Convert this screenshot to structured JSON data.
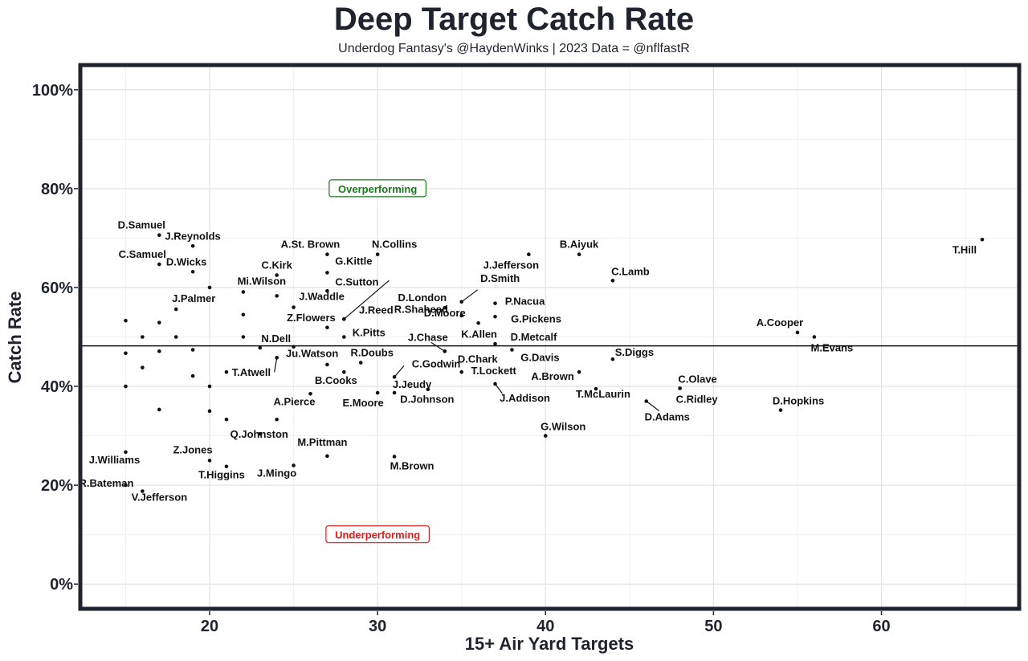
{
  "chart_data": {
    "type": "scatter",
    "title": "Deep Target Catch Rate",
    "subtitle": "Underdog Fantasy's @HaydenWinks | 2023 Data = @nflfastR",
    "xlabel": "15+ Air Yard Targets",
    "ylabel": "Catch Rate",
    "xlim": [
      12.3,
      68.2
    ],
    "ylim": [
      -5,
      105
    ],
    "x_ticks": [
      20,
      30,
      40,
      50,
      60
    ],
    "y_ticks": [
      0,
      20,
      40,
      60,
      80,
      100
    ],
    "y_tick_labels": [
      "0%",
      "20%",
      "40%",
      "60%",
      "80%",
      "100%"
    ],
    "reference_line_y": 48.2,
    "annotations": [
      {
        "text": "Overperforming",
        "x": 30,
        "y": 80,
        "color": "#1a7a1a"
      },
      {
        "text": "Underperforming",
        "x": 30,
        "y": 10,
        "color": "#e01b1b"
      }
    ],
    "points": [
      {
        "name": "T.Hill",
        "x": 66,
        "y": 69.7
      },
      {
        "name": "B.Aiyuk",
        "x": 42,
        "y": 66.7
      },
      {
        "name": "J.Jefferson",
        "x": 39,
        "y": 66.7
      },
      {
        "name": "C.Lamb",
        "x": 44,
        "y": 61.4
      },
      {
        "name": "D.Samuel",
        "x": 17,
        "y": 70.6
      },
      {
        "name": "C.Samuel",
        "x": 17,
        "y": 64.7
      },
      {
        "name": "J.Reynolds",
        "x": 19,
        "y": 68.4
      },
      {
        "name": "D.Wicks",
        "x": 19,
        "y": 63.2
      },
      {
        "name": "J.Palmer",
        "x": 18,
        "y": 55.6
      },
      {
        "name": "A.St. Brown",
        "x": 27,
        "y": 66.7
      },
      {
        "name": "N.Collins",
        "x": 30,
        "y": 66.7
      },
      {
        "name": "C.Kirk",
        "x": 24,
        "y": 62.5
      },
      {
        "name": "G.Kittle",
        "x": 27,
        "y": 63.0
      },
      {
        "name": "Mi.Wilson",
        "x": 22,
        "y": 59.1
      },
      {
        "name": "C.Sutton",
        "x": 27,
        "y": 59.3
      },
      {
        "name": "R.Shaheed",
        "x": 28,
        "y": 53.6
      },
      {
        "name": "J.Waddle",
        "x": 25,
        "y": 56.0
      },
      {
        "name": "Z.Flowers",
        "x": 27,
        "y": 51.9
      },
      {
        "name": "J.Reed",
        "x": 28,
        "y": 53.6
      },
      {
        "name": "K.Pitts",
        "x": 28,
        "y": 50.0
      },
      {
        "name": "N.Dell",
        "x": 23,
        "y": 47.8
      },
      {
        "name": "Ju.Watson",
        "x": 24,
        "y": 45.8
      },
      {
        "name": "R.Doubs",
        "x": 29,
        "y": 44.8
      },
      {
        "name": "T.Atwell",
        "x": 21,
        "y": 42.9
      },
      {
        "name": "B.Cooks",
        "x": 28,
        "y": 42.9
      },
      {
        "name": "D.Smith",
        "x": 35,
        "y": 57.1
      },
      {
        "name": "D.London",
        "x": 34,
        "y": 55.9
      },
      {
        "name": "D.Moore",
        "x": 35,
        "y": 54.3
      },
      {
        "name": "P.Nacua",
        "x": 37,
        "y": 56.8
      },
      {
        "name": "G.Pickens",
        "x": 37,
        "y": 54.1
      },
      {
        "name": "K.Allen",
        "x": 36,
        "y": 52.8
      },
      {
        "name": "J.Chase",
        "x": 34,
        "y": 47.1
      },
      {
        "name": "D.Metcalf",
        "x": 37,
        "y": 48.6
      },
      {
        "name": "D.Chark",
        "x": 34,
        "y": 47.1
      },
      {
        "name": "G.Davis",
        "x": 38,
        "y": 47.4
      },
      {
        "name": "C.Godwin",
        "x": 31,
        "y": 41.9
      },
      {
        "name": "T.Lockett",
        "x": 35,
        "y": 42.9
      },
      {
        "name": "J.Jeudy",
        "x": 31,
        "y": 38.7
      },
      {
        "name": "E.Moore",
        "x": 30,
        "y": 38.7
      },
      {
        "name": "D.Johnson",
        "x": 33,
        "y": 39.4
      },
      {
        "name": "J.Addison",
        "x": 37,
        "y": 40.5
      },
      {
        "name": "A.Brown",
        "x": 42,
        "y": 42.9
      },
      {
        "name": "T.McLaurin",
        "x": 43,
        "y": 39.5
      },
      {
        "name": "S.Diggs",
        "x": 44,
        "y": 45.5
      },
      {
        "name": "A.Cooper",
        "x": 55,
        "y": 50.9
      },
      {
        "name": "M.Evans",
        "x": 56,
        "y": 50.0
      },
      {
        "name": "C.Olave",
        "x": 48,
        "y": 39.6
      },
      {
        "name": "C.Ridley",
        "x": 48,
        "y": 39.6
      },
      {
        "name": "D.Adams",
        "x": 46,
        "y": 37.0
      },
      {
        "name": "D.Hopkins",
        "x": 54,
        "y": 35.2
      },
      {
        "name": "A.Pierce",
        "x": 26,
        "y": 38.5
      },
      {
        "name": "Q.Johnston",
        "x": 23,
        "y": 30.4
      },
      {
        "name": "G.Wilson",
        "x": 40,
        "y": 30.0
      },
      {
        "name": "M.Pittman",
        "x": 27,
        "y": 25.9
      },
      {
        "name": "M.Brown",
        "x": 31,
        "y": 25.8
      },
      {
        "name": "J.Mingo",
        "x": 25,
        "y": 24.0
      },
      {
        "name": "Z.Jones",
        "x": 20,
        "y": 25.0
      },
      {
        "name": "T.Higgins",
        "x": 21,
        "y": 23.8
      },
      {
        "name": "J.Williams",
        "x": 15,
        "y": 26.7
      },
      {
        "name": "R.Bateman",
        "x": 15,
        "y": 20.0
      },
      {
        "name": "V.Jefferson",
        "x": 16,
        "y": 18.8
      },
      {
        "name": "",
        "x": 15,
        "y": 53.3
      },
      {
        "name": "",
        "x": 16,
        "y": 50.0
      },
      {
        "name": "",
        "x": 15,
        "y": 46.7
      },
      {
        "name": "",
        "x": 16,
        "y": 43.8
      },
      {
        "name": "",
        "x": 15,
        "y": 40.0
      },
      {
        "name": "",
        "x": 17,
        "y": 52.9
      },
      {
        "name": "",
        "x": 17,
        "y": 47.1
      },
      {
        "name": "",
        "x": 17,
        "y": 35.3
      },
      {
        "name": "",
        "x": 18,
        "y": 50.0
      },
      {
        "name": "",
        "x": 19,
        "y": 47.4
      },
      {
        "name": "",
        "x": 19,
        "y": 42.1
      },
      {
        "name": "",
        "x": 20,
        "y": 60.0
      },
      {
        "name": "",
        "x": 20,
        "y": 40.0
      },
      {
        "name": "",
        "x": 20,
        "y": 35.0
      },
      {
        "name": "",
        "x": 21,
        "y": 33.3
      },
      {
        "name": "",
        "x": 22,
        "y": 54.5
      },
      {
        "name": "",
        "x": 22,
        "y": 50.0
      },
      {
        "name": "",
        "x": 24,
        "y": 58.3
      },
      {
        "name": "",
        "x": 24,
        "y": 33.3
      },
      {
        "name": "",
        "x": 25,
        "y": 48.0
      },
      {
        "name": "",
        "x": 27,
        "y": 44.4
      }
    ]
  }
}
